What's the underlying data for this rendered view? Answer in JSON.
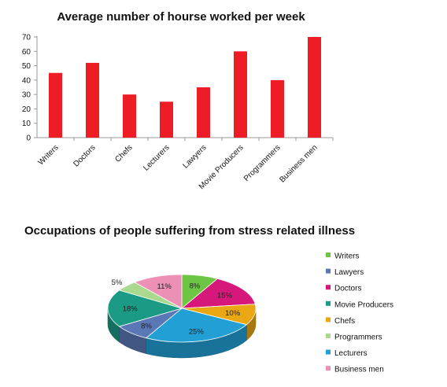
{
  "chart_data": [
    {
      "type": "bar",
      "title": "Average number of hourse worked per week",
      "categories": [
        "Writers",
        "Doctors",
        "Chefs",
        "Lecturers",
        "Lawyers",
        "Movie Producers",
        "Programmers",
        "Business men"
      ],
      "values": [
        45,
        52,
        30,
        25,
        35,
        60,
        40,
        70
      ],
      "ylim": [
        0,
        70
      ],
      "yticks": [
        "0",
        "10",
        "20",
        "30",
        "40",
        "50",
        "60",
        "70"
      ],
      "grid": false,
      "legend": false,
      "color": "#ee1c25"
    },
    {
      "type": "pie",
      "title": "Occupations of people suffering from stress  related illness",
      "slices": [
        {
          "label": "Writers",
          "value": 8,
          "text": "8%",
          "color": "#6cc644"
        },
        {
          "label": "Doctors",
          "value": 15,
          "text": "15%",
          "color": "#d6187a"
        },
        {
          "label": "Chefs",
          "value": 10,
          "text": "10%",
          "color": "#e8a713"
        },
        {
          "label": "Lecturers",
          "value": 25,
          "text": "25%",
          "color": "#229fd4"
        },
        {
          "label": "Lawyers",
          "value": 8,
          "text": "8%",
          "color": "#5a77b6"
        },
        {
          "label": "Movie Producers",
          "value": 18,
          "text": "18%",
          "color": "#1b9b86"
        },
        {
          "label": "Programmers",
          "value": 5,
          "text": "5%",
          "color": "#a8d98c"
        },
        {
          "label": "Business men",
          "value": 11,
          "text": "11%",
          "color": "#ec90b6"
        }
      ],
      "legend_order": [
        "Writers",
        "Lawyers",
        "Doctors",
        "Movie Producers",
        "Chefs",
        "Programmers",
        "Lecturers",
        "Business men"
      ],
      "legend_position": "right"
    }
  ]
}
